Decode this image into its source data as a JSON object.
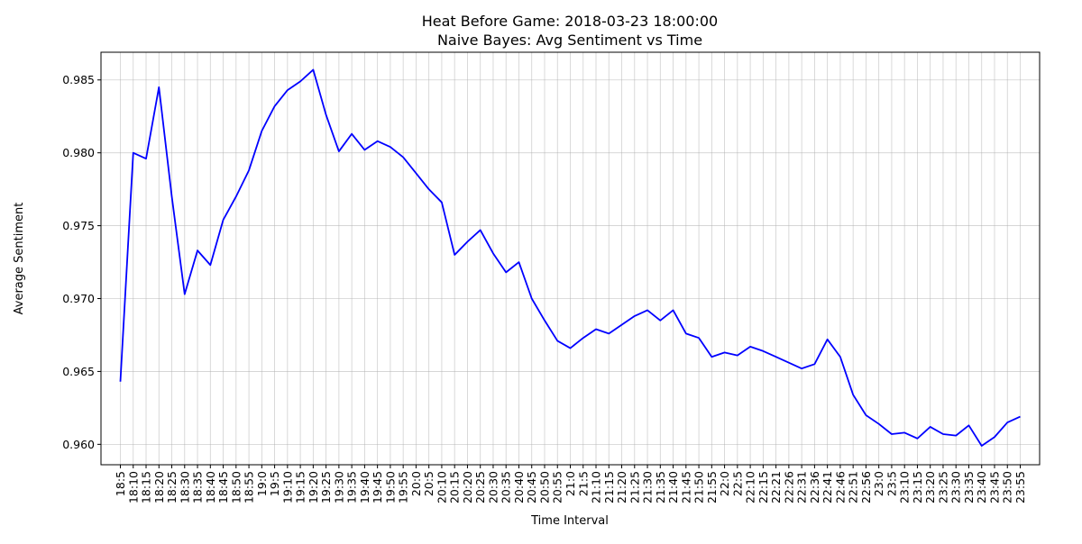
{
  "chart_data": {
    "type": "line",
    "title": "Heat Before Game: 2018-03-23 18:00:00",
    "subtitle": "Naive Bayes: Avg Sentiment vs Time",
    "xlabel": "Time Interval",
    "ylabel": "Average Sentiment",
    "ylim": [
      0.9586,
      0.9869
    ],
    "yticks": [
      0.96,
      0.965,
      0.97,
      0.975,
      0.98,
      0.985
    ],
    "ytick_labels": [
      "0.960",
      "0.965",
      "0.970",
      "0.975",
      "0.980",
      "0.985"
    ],
    "grid": true,
    "line_color": "#0000ff",
    "x": [
      "18:5",
      "18:10",
      "18:15",
      "18:20",
      "18:25",
      "18:30",
      "18:35",
      "18:40",
      "18:45",
      "18:50",
      "18:55",
      "19:0",
      "19:5",
      "19:10",
      "19:15",
      "19:20",
      "19:25",
      "19:30",
      "19:35",
      "19:40",
      "19:45",
      "19:50",
      "19:55",
      "20:0",
      "20:5",
      "20:10",
      "20:15",
      "20:20",
      "20:25",
      "20:30",
      "20:35",
      "20:40",
      "20:45",
      "20:50",
      "20:55",
      "21:0",
      "21:5",
      "21:10",
      "21:15",
      "21:20",
      "21:25",
      "21:30",
      "21:35",
      "21:40",
      "21:45",
      "21:50",
      "21:55",
      "22:0",
      "22:5",
      "22:10",
      "22:15",
      "22:21",
      "22:26",
      "22:31",
      "22:36",
      "22:41",
      "22:46",
      "22:51",
      "22:56",
      "23:0",
      "23:5",
      "23:10",
      "23:15",
      "23:20",
      "23:25",
      "23:30",
      "23:35",
      "23:40",
      "23:45",
      "23:50",
      "23:55"
    ],
    "series": [
      {
        "values": [
          0.9643,
          0.98,
          0.9796,
          0.9845,
          0.977,
          0.9703,
          0.9733,
          0.9723,
          0.9754,
          0.977,
          0.9788,
          0.9815,
          0.9832,
          0.9843,
          0.9849,
          0.9857,
          0.9826,
          0.9801,
          0.9813,
          0.9802,
          0.9808,
          0.9804,
          0.9797,
          0.9786,
          0.9775,
          0.9766,
          0.973,
          0.9739,
          0.9747,
          0.9731,
          0.9718,
          0.9725,
          0.97,
          0.9685,
          0.9671,
          0.9666,
          0.9673,
          0.9679,
          0.9676,
          0.9682,
          0.9688,
          0.9692,
          0.9685,
          0.9692,
          0.9676,
          0.9673,
          0.966,
          0.9663,
          0.9661,
          0.9667,
          0.9664,
          0.966,
          0.9656,
          0.9652,
          0.9655,
          0.9672,
          0.966,
          0.9634,
          0.962,
          0.9614,
          0.9607,
          0.9608,
          0.9604,
          0.9612,
          0.9607,
          0.9606,
          0.9613,
          0.9599,
          0.9605,
          0.9615,
          0.9619
        ]
      }
    ]
  }
}
